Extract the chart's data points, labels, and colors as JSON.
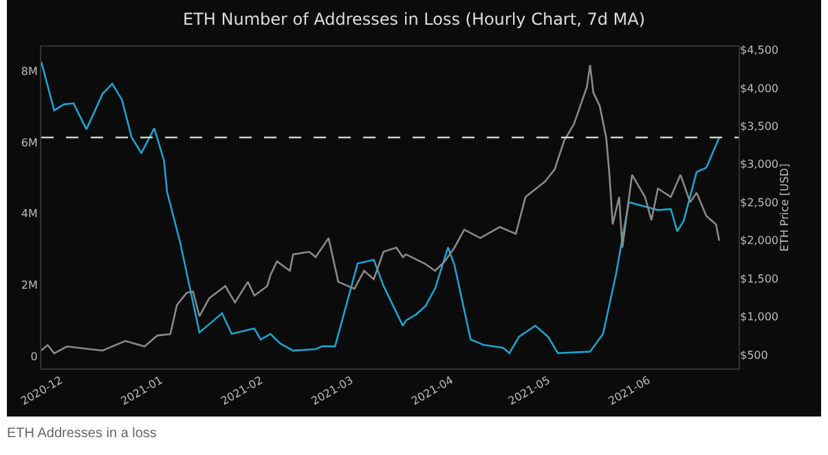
{
  "chart_data": {
    "type": "line",
    "title": "ETH Number of Addresses in Loss (Hourly Chart, 7d MA)",
    "y2label": "ETH Price [USD]",
    "annotations": [
      "ETH Addresses in a loss"
    ],
    "xlim": [
      "2020-11-25",
      "2021-06-29"
    ],
    "xticks": [
      {
        "value": "2020-12-01",
        "label": "2020-12"
      },
      {
        "value": "2021-01-01",
        "label": "2021-01"
      },
      {
        "value": "2021-02-01",
        "label": "2021-02"
      },
      {
        "value": "2021-03-01",
        "label": "2021-03"
      },
      {
        "value": "2021-04-01",
        "label": "2021-04"
      },
      {
        "value": "2021-05-01",
        "label": "2021-05"
      },
      {
        "value": "2021-06-01",
        "label": "2021-06"
      }
    ],
    "ylim": [
      -350000,
      8690000
    ],
    "yticks": [
      0,
      {
        "value": 2000000,
        "label": "2M"
      },
      {
        "value": 4000000,
        "label": "4M"
      },
      {
        "value": 6000000,
        "label": "6M"
      },
      {
        "value": 8000000,
        "label": "8M"
      }
    ],
    "y2lim": [
      320,
      4540
    ],
    "y2ticks": [
      {
        "value": 500,
        "label": "$500"
      },
      {
        "value": 1000,
        "label": "$1,000"
      },
      {
        "value": 1500,
        "label": "$1,500"
      },
      {
        "value": 2000,
        "label": "$2,000"
      },
      {
        "value": 2500,
        "label": "$2,500"
      },
      {
        "value": 3000,
        "label": "$3,000"
      },
      {
        "value": 3500,
        "label": "$3,500"
      },
      {
        "value": 4000,
        "label": "$4,000"
      },
      {
        "value": 4500,
        "label": "$4,500"
      }
    ],
    "grid": false,
    "line_style": "solid",
    "ref_lines": [
      {
        "axis": "y",
        "value": 6140000,
        "color": "#d0d0d0",
        "line_style": "dashed"
      }
    ],
    "series": [
      {
        "color": "#8a8a8a",
        "axis": "y2",
        "x": [
          "2020-11-25",
          "2020-11-27",
          "2020-11-29",
          "2020-12-03",
          "2020-12-10",
          "2020-12-14",
          "2020-12-21",
          "2020-12-27",
          "2020-12-31",
          "2021-01-04",
          "2021-01-06",
          "2021-01-09",
          "2021-01-11",
          "2021-01-13",
          "2021-01-16",
          "2021-01-21",
          "2021-01-24",
          "2021-01-28",
          "2021-01-30",
          "2021-02-03",
          "2021-02-04",
          "2021-02-06",
          "2021-02-10",
          "2021-02-11",
          "2021-02-16",
          "2021-02-18",
          "2021-02-22",
          "2021-02-25",
          "2021-03-02",
          "2021-03-05",
          "2021-03-08",
          "2021-03-11",
          "2021-03-15",
          "2021-03-17",
          "2021-03-18",
          "2021-03-24",
          "2021-03-27",
          "2021-03-30",
          "2021-04-02",
          "2021-04-05",
          "2021-04-10",
          "2021-04-16",
          "2021-04-21",
          "2021-04-24",
          "2021-04-30",
          "2021-05-03",
          "2021-05-06",
          "2021-05-09",
          "2021-05-13",
          "2021-05-14",
          "2021-05-15",
          "2021-05-17",
          "2021-05-19",
          "2021-05-20",
          "2021-05-21",
          "2021-05-23",
          "2021-05-24",
          "2021-05-27",
          "2021-05-31",
          "2021-06-02",
          "2021-06-04",
          "2021-06-08",
          "2021-06-11",
          "2021-06-14",
          "2021-06-16",
          "2021-06-19",
          "2021-06-22",
          "2021-06-23"
        ],
        "values": [
          554,
          626,
          518,
          608,
          572,
          554,
          680,
          608,
          752,
          770,
          1149,
          1311,
          1330,
          1005,
          1239,
          1400,
          1185,
          1455,
          1275,
          1400,
          1545,
          1725,
          1600,
          1815,
          1850,
          1780,
          2030,
          1455,
          1365,
          1600,
          1490,
          1850,
          1905,
          1780,
          1815,
          1690,
          1600,
          1725,
          1905,
          2140,
          2030,
          2175,
          2085,
          2570,
          2770,
          2930,
          3310,
          3525,
          4010,
          4300,
          3940,
          3760,
          3345,
          2860,
          2210,
          2570,
          1905,
          2860,
          2570,
          2265,
          2680,
          2570,
          2860,
          2500,
          2625,
          2320,
          2210,
          1995
        ]
      },
      {
        "color": "#1fa3cf",
        "axis": "y",
        "x": [
          "2020-11-25",
          "2020-11-29",
          "2020-12-02",
          "2020-12-05",
          "2020-12-09",
          "2020-12-14",
          "2020-12-17",
          "2020-12-20",
          "2020-12-23",
          "2020-12-26",
          "2020-12-30",
          "2021-01-02",
          "2021-01-03",
          "2021-01-07",
          "2021-01-13",
          "2021-01-20",
          "2021-01-23",
          "2021-01-28",
          "2021-01-30",
          "2021-02-01",
          "2021-02-04",
          "2021-02-07",
          "2021-02-11",
          "2021-02-18",
          "2021-02-20",
          "2021-02-24",
          "2021-03-03",
          "2021-03-08",
          "2021-03-11",
          "2021-03-17",
          "2021-03-18",
          "2021-03-21",
          "2021-03-24",
          "2021-03-27",
          "2021-03-31",
          "2021-04-02",
          "2021-04-07",
          "2021-04-11",
          "2021-04-17",
          "2021-04-19",
          "2021-04-22",
          "2021-04-27",
          "2021-05-01",
          "2021-05-04",
          "2021-05-14",
          "2021-05-18",
          "2021-05-22",
          "2021-05-26",
          "2021-05-31",
          "2021-06-04",
          "2021-06-08",
          "2021-06-10",
          "2021-06-12",
          "2021-06-16",
          "2021-06-19",
          "2021-06-23"
        ],
        "values": [
          8270000,
          6900000,
          7070000,
          7100000,
          6370000,
          7370000,
          7650000,
          7200000,
          6140000,
          5700000,
          6400000,
          5500000,
          4600000,
          3200000,
          660000,
          1200000,
          620000,
          730000,
          770000,
          460000,
          620000,
          350000,
          150000,
          190000,
          270000,
          270000,
          2600000,
          2700000,
          1970000,
          850000,
          1000000,
          1160000,
          1400000,
          1900000,
          3050000,
          2550000,
          460000,
          310000,
          230000,
          80000,
          540000,
          850000,
          540000,
          80000,
          120000,
          620000,
          2280000,
          4320000,
          4200000,
          4100000,
          4130000,
          3500000,
          3800000,
          5170000,
          5290000,
          6140000
        ]
      }
    ]
  }
}
